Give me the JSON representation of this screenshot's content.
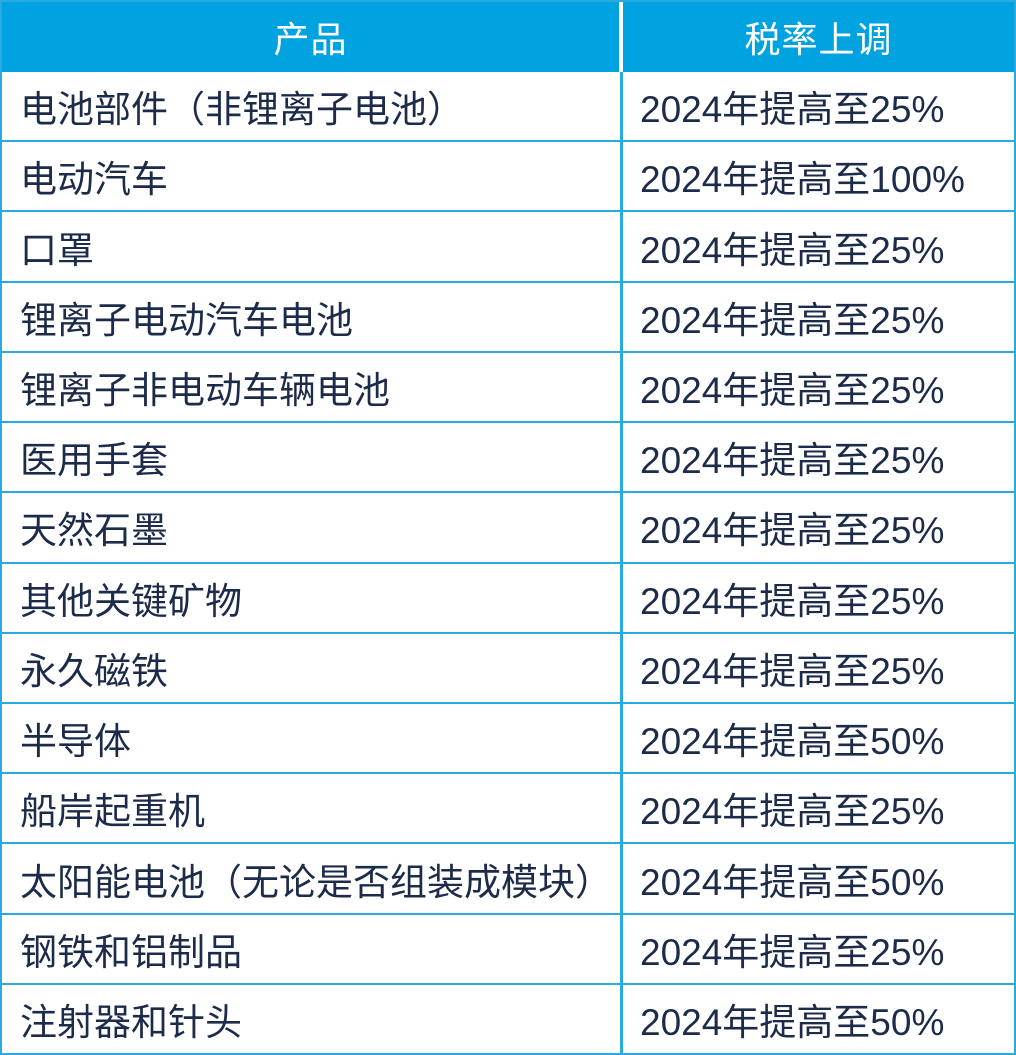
{
  "colors": {
    "header_bg": "#00A3E0",
    "border": "#29ABE2",
    "text": "#1C2B4A",
    "header_text": "#FFFFFF"
  },
  "table": {
    "columns": [
      {
        "label": "产品"
      },
      {
        "label": "税率上调"
      }
    ],
    "rows": [
      {
        "product": "电池部件（非锂离子电池）",
        "rate": "2024年提高至25%"
      },
      {
        "product": "电动汽车",
        "rate": "2024年提高至100%"
      },
      {
        "product": "口罩",
        "rate": "2024年提高至25%"
      },
      {
        "product": "锂离子电动汽车电池",
        "rate": "2024年提高至25%"
      },
      {
        "product": "锂离子非电动车辆电池",
        "rate": "2024年提高至25%"
      },
      {
        "product": "医用手套",
        "rate": "2024年提高至25%"
      },
      {
        "product": "天然石墨",
        "rate": "2024年提高至25%"
      },
      {
        "product": "其他关键矿物",
        "rate": "2024年提高至25%"
      },
      {
        "product": "永久磁铁",
        "rate": "2024年提高至25%"
      },
      {
        "product": "半导体",
        "rate": "2024年提高至50%"
      },
      {
        "product": "船岸起重机",
        "rate": "2024年提高至25%"
      },
      {
        "product": "太阳能电池（无论是否组装成模块）",
        "rate": "2024年提高至50%"
      },
      {
        "product": "钢铁和铝制品",
        "rate": "2024年提高至25%"
      },
      {
        "product": "注射器和针头",
        "rate": "2024年提高至50%"
      }
    ]
  },
  "chart_data": {
    "type": "table",
    "title": "",
    "columns": [
      "产品",
      "税率上调"
    ],
    "rows": [
      [
        "电池部件（非锂离子电池）",
        "2024年提高至25%"
      ],
      [
        "电动汽车",
        "2024年提高至100%"
      ],
      [
        "口罩",
        "2024年提高至25%"
      ],
      [
        "锂离子电动汽车电池",
        "2024年提高至25%"
      ],
      [
        "锂离子非电动车辆电池",
        "2024年提高至25%"
      ],
      [
        "医用手套",
        "2024年提高至25%"
      ],
      [
        "天然石墨",
        "2024年提高至25%"
      ],
      [
        "其他关键矿物",
        "2024年提高至25%"
      ],
      [
        "永久磁铁",
        "2024年提高至25%"
      ],
      [
        "半导体",
        "2024年提高至50%"
      ],
      [
        "船岸起重机",
        "2024年提高至25%"
      ],
      [
        "太阳能电池（无论是否组装成模块）",
        "2024年提高至50%"
      ],
      [
        "钢铁和铝制品",
        "2024年提高至25%"
      ],
      [
        "注射器和针头",
        "2024年提高至50%"
      ]
    ],
    "tariff_percent_by_row": [
      25,
      100,
      25,
      25,
      25,
      25,
      25,
      25,
      25,
      50,
      25,
      50,
      25,
      50
    ],
    "effective_year": 2024
  }
}
